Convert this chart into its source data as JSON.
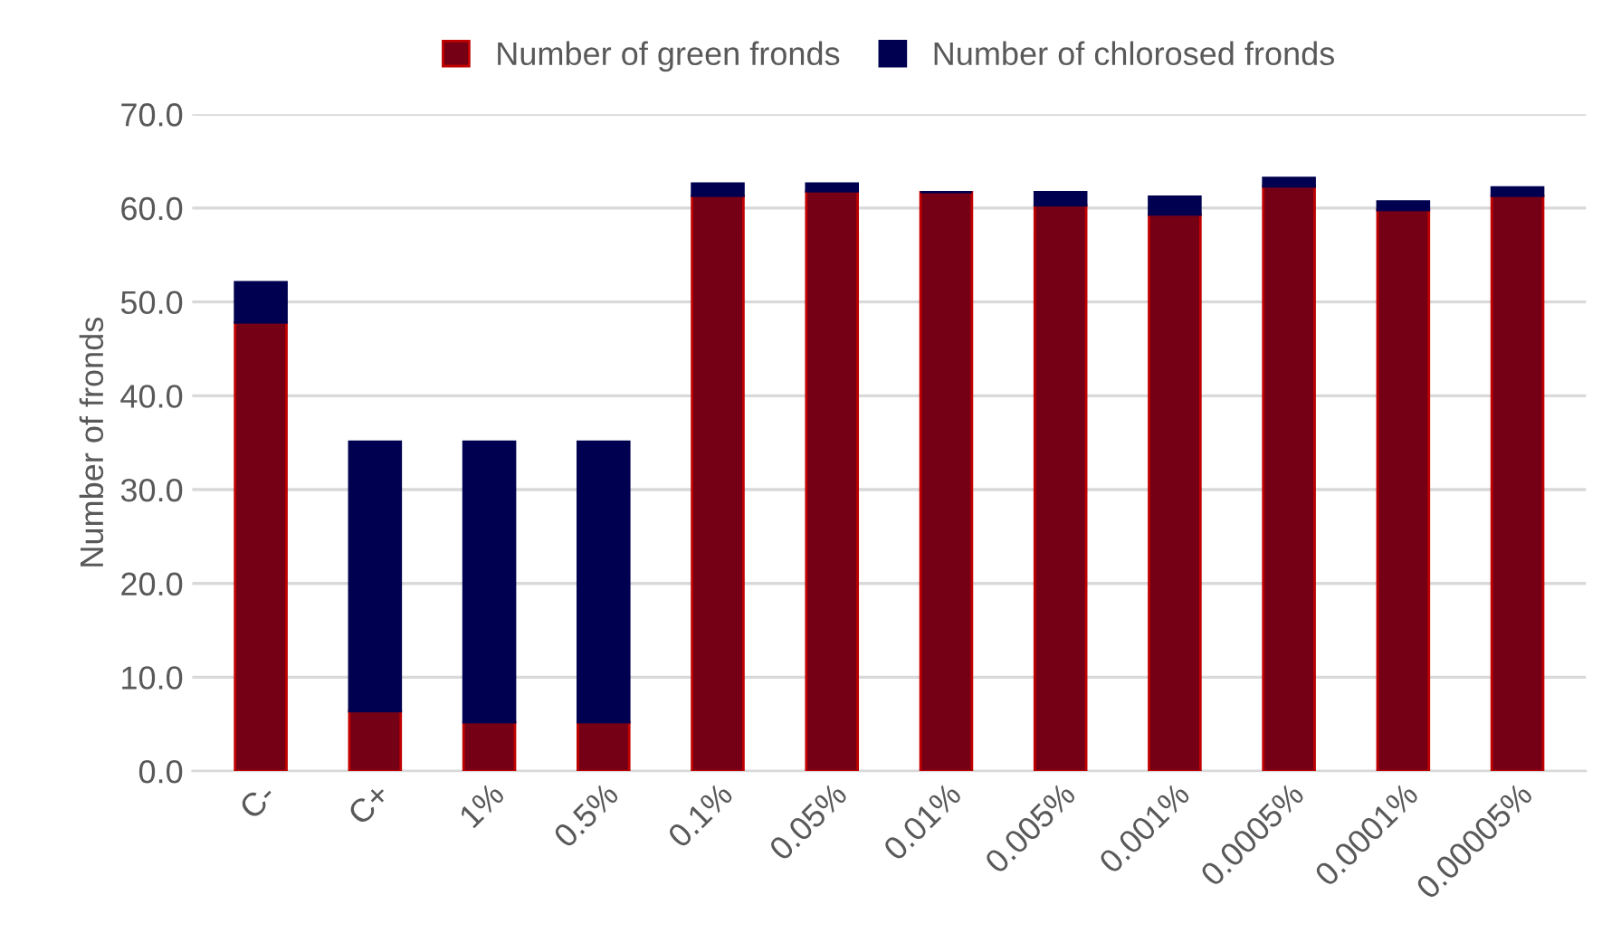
{
  "chart_data": {
    "type": "bar",
    "stacked": true,
    "ylabel": "Number of fronds",
    "categories": [
      "C-",
      "C+",
      "1%",
      "0.5%",
      "0.1%",
      "0.05%",
      "0.01%",
      "0.005%",
      "0.001%",
      "0.0005%",
      "0.0001%",
      "0.00005%"
    ],
    "series": [
      {
        "name": "Number of green fronds",
        "color": "#750015",
        "values": [
          47.8,
          6.4,
          5.2,
          5.2,
          61.3,
          61.8,
          61.7,
          60.3,
          59.3,
          62.3,
          59.8,
          61.3
        ]
      },
      {
        "name": "Number of chlorosed fronds",
        "color": "#000050",
        "values": [
          4.3,
          28.7,
          29.9,
          29.9,
          1.3,
          0.8,
          0,
          1.4,
          1.9,
          0.9,
          0.9,
          0.9
        ]
      }
    ],
    "ylim": [
      0,
      70
    ],
    "yticks": [
      {
        "value": 0,
        "label": "0.0"
      },
      {
        "value": 10,
        "label": "10.0"
      },
      {
        "value": 20,
        "label": "20.0"
      },
      {
        "value": 30,
        "label": "30.0"
      },
      {
        "value": 40,
        "label": "40.0"
      },
      {
        "value": 50,
        "label": "50.0"
      },
      {
        "value": 60,
        "label": "60.0"
      },
      {
        "value": 70,
        "label": "70.0"
      }
    ],
    "grid": "y",
    "legend": "top"
  }
}
